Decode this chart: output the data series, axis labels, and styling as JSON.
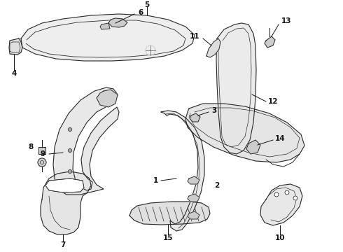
{
  "bg_color": "#ffffff",
  "line_color": "#2a2a2a",
  "fill_color": "#f0f0f0",
  "lw": 0.8,
  "label_fontsize": 7.5,
  "parts": {
    "headliner_5_6": {
      "label5": "5",
      "label6": "6"
    },
    "visor_4": {
      "label": "4"
    },
    "handle_11": {
      "label": "11"
    },
    "clip_13": {
      "label": "13"
    },
    "clip_3": {
      "label": "3"
    },
    "b_pillar_9": {
      "label": "9"
    },
    "a_pillar_1_2": {
      "label1": "1",
      "label2": "2"
    },
    "door_panel_12_14": {
      "label12": "12",
      "label14": "14"
    },
    "bolt_8": {
      "label": "8"
    },
    "kick_7": {
      "label": "7"
    },
    "sill_15": {
      "label": "15"
    },
    "rear_10": {
      "label": "10"
    }
  }
}
